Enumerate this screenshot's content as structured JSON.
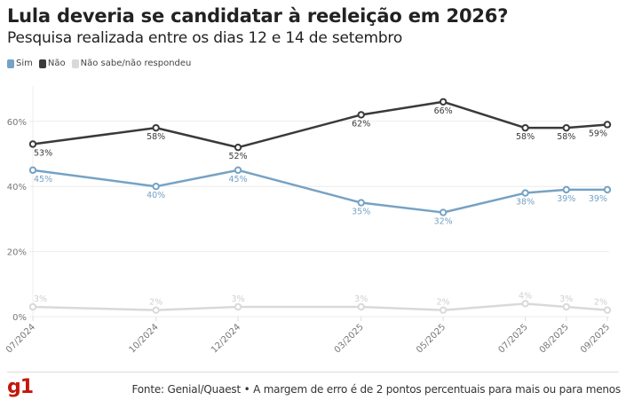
{
  "header": {
    "title": "Lula deveria se candidatar à reeleição em 2026?",
    "subtitle": "Pesquisa realizada entre os dias 12 e 14 de setembro"
  },
  "footer": {
    "logo": "g1",
    "source": "Fonte: Genial/Quaest • A margem de erro é de 2 pontos percentuais para mais ou para menos"
  },
  "chart_data": {
    "type": "line",
    "title": "Lula deveria se candidatar à reeleição em 2026?",
    "subtitle": "Pesquisa realizada entre os dias 12 e 14 de setembro",
    "xlabel": "",
    "ylabel": "",
    "ylim": [
      0,
      70
    ],
    "yticks": [
      0,
      20,
      40,
      60
    ],
    "ytick_labels": [
      "0%",
      "20%",
      "40%",
      "60%"
    ],
    "grid": true,
    "legend_position": "top-left",
    "categories": [
      "07/2024",
      "10/2024",
      "12/2024",
      "03/2025",
      "05/2025",
      "07/2025",
      "08/2025",
      "09/2025"
    ],
    "x_month_index": [
      0,
      3,
      5,
      8,
      10,
      12,
      13,
      14
    ],
    "series": [
      {
        "name": "Sim",
        "color": "#76a2c4",
        "values": [
          45,
          40,
          45,
          35,
          32,
          38,
          39,
          39
        ],
        "labels": [
          "45%",
          "40%",
          "45%",
          "35%",
          "32%",
          "38%",
          "39%",
          "39%"
        ]
      },
      {
        "name": "Não",
        "color": "#3a3a3a",
        "values": [
          53,
          58,
          52,
          62,
          66,
          58,
          58,
          59
        ],
        "labels": [
          "53%",
          "58%",
          "52%",
          "62%",
          "66%",
          "58%",
          "58%",
          "59%"
        ]
      },
      {
        "name": "Não sabe/não respondeu",
        "color": "#d9d9d9",
        "values": [
          3,
          2,
          3,
          3,
          2,
          4,
          3,
          2
        ],
        "labels": [
          "3%",
          "2%",
          "3%",
          "3%",
          "2%",
          "4%",
          "3%",
          "2%"
        ]
      }
    ]
  }
}
